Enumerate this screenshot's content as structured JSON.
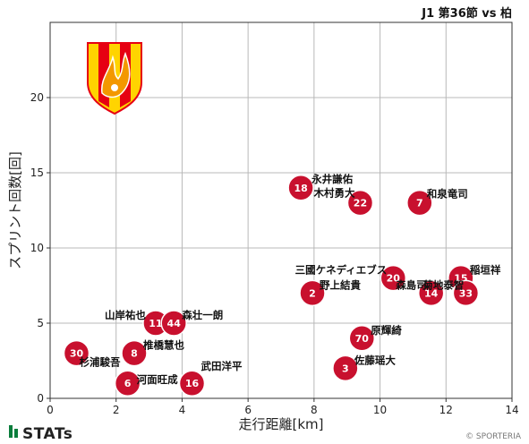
{
  "header": {
    "title": "J1 第36節 vs 柏"
  },
  "footer": {
    "brand": "STATs",
    "credit": "© SPORTERIA"
  },
  "colors": {
    "marker": "#c8102e",
    "marker_stroke": "#ffffff",
    "grid": "#b8b8b8",
    "frame": "#333333",
    "crest_orange": "#f39800",
    "crest_red": "#e60012",
    "crest_yellow": "#ffd400"
  },
  "crest_icon": "flame-phoenix-crest-icon",
  "chart_data": {
    "type": "scatter",
    "xlabel": "走行距離[km]",
    "ylabel": "スプリント回数[回]",
    "xlim": [
      0,
      14
    ],
    "ylim": [
      0,
      25
    ],
    "xticks": [
      0,
      2,
      4,
      6,
      8,
      10,
      12,
      14
    ],
    "yticks": [
      0,
      5,
      10,
      15,
      20
    ],
    "grid": true,
    "points": [
      {
        "number": "18",
        "name": "永井謙佑",
        "x": 7.6,
        "y": 14
      },
      {
        "number": "22",
        "name": "木村勇大",
        "x": 9.4,
        "y": 13
      },
      {
        "number": "7",
        "name": "和泉竜司",
        "x": 11.2,
        "y": 13
      },
      {
        "number": "2",
        "name": "野上結貴",
        "x": 7.95,
        "y": 7
      },
      {
        "number": "20",
        "name": "三國ケネディエブス",
        "x": 10.4,
        "y": 8
      },
      {
        "number": "14",
        "name": "森島司",
        "x": 11.55,
        "y": 7
      },
      {
        "number": "15",
        "name": "稲垣祥",
        "x": 12.45,
        "y": 8
      },
      {
        "number": "33",
        "name": "菊地泰智",
        "x": 12.6,
        "y": 7
      },
      {
        "number": "11",
        "name": "山岸祐也",
        "x": 3.2,
        "y": 5
      },
      {
        "number": "44",
        "name": "森壮一朗",
        "x": 3.75,
        "y": 5
      },
      {
        "number": "70",
        "name": "原輝綺",
        "x": 9.45,
        "y": 4
      },
      {
        "number": "3",
        "name": "佐藤瑶大",
        "x": 8.95,
        "y": 2
      },
      {
        "number": "30",
        "name": "杉浦駿吾",
        "x": 0.8,
        "y": 3
      },
      {
        "number": "8",
        "name": "椎橋慧也",
        "x": 2.55,
        "y": 3
      },
      {
        "number": "6",
        "name": "河面旺成",
        "x": 2.35,
        "y": 1
      },
      {
        "number": "16",
        "name": "武田洋平",
        "x": 4.3,
        "y": 1
      }
    ]
  }
}
